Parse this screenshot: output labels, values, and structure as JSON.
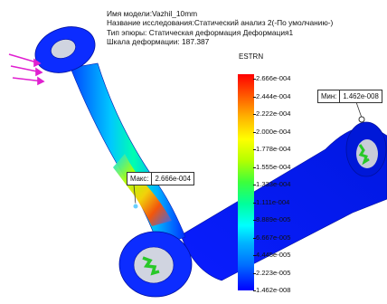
{
  "info": {
    "model_name": "Имя модели:Vazhil_10mm",
    "study_name": "Название исследования:Статический анализ 2(-По умолчанию-)",
    "plot_type": "Тип эпюры: Статическая деформация Деформация1",
    "deformation_scale": "Шкала деформации: 187.387"
  },
  "legend": {
    "title": "ESTRN",
    "ticks": [
      "2.666e-004",
      "2.444e-004",
      "2.222e-004",
      "2.000e-004",
      "1.778e-004",
      "1.555e-004",
      "1.333e-004",
      "1.111e-004",
      "8.889e-005",
      "6.667e-005",
      "4.445e-005",
      "2.223e-005",
      "1.462e-008"
    ],
    "colors": [
      "#ff0000",
      "#ffff00",
      "#00ff00",
      "#00ffff",
      "#0000ff"
    ]
  },
  "callouts": {
    "max_label": "Макс:",
    "max_value": "2.666e-004",
    "min_label": "Мин:",
    "min_value": "1.462e-008"
  },
  "icons": {
    "load": "force-arrows-icon"
  }
}
